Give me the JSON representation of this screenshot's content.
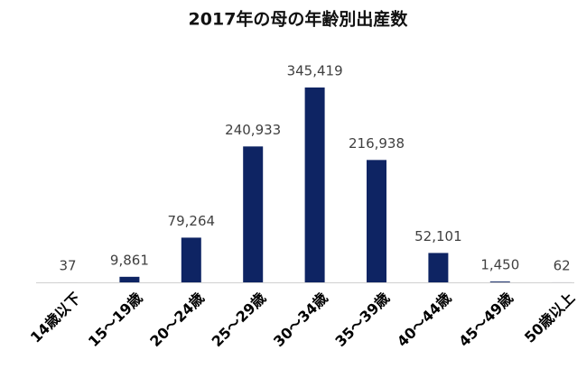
{
  "chart_data": {
    "type": "bar",
    "title": "2017年の母の年齢別出産数",
    "categories": [
      "14歳以下",
      "15～19歳",
      "20～24歳",
      "25～29歳",
      "30～34歳",
      "35～39歳",
      "40～44歳",
      "45～49歳",
      "50歳以上"
    ],
    "values": [
      37,
      9861,
      79264,
      240933,
      345419,
      216938,
      52101,
      1450,
      62
    ],
    "value_labels": [
      "37",
      "9,861",
      "79,264",
      "240,933",
      "345,419",
      "216,938",
      "52,101",
      "1,450",
      "62"
    ],
    "color": "#0e2463"
  }
}
